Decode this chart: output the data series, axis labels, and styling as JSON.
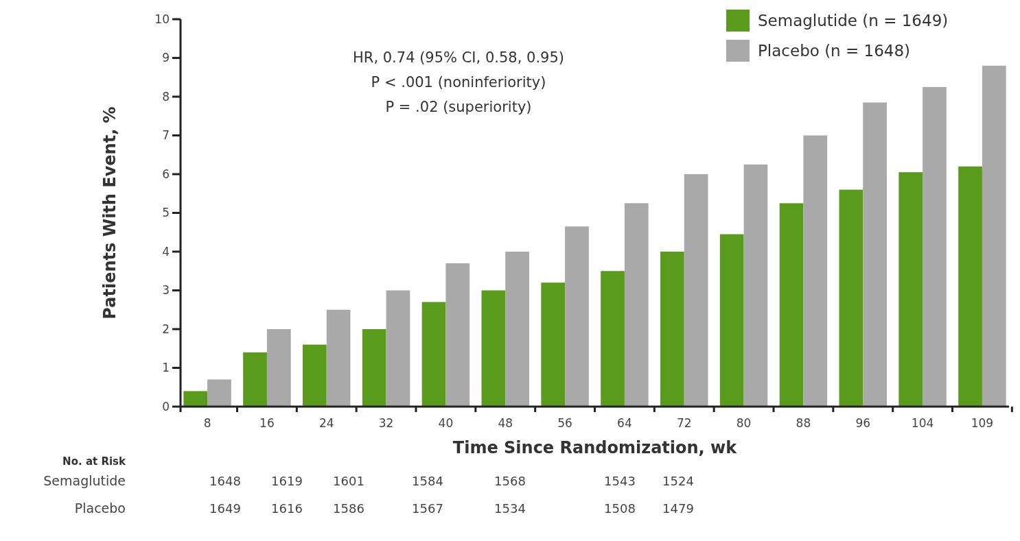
{
  "chart_data": {
    "type": "bar",
    "xlabel": "Time Since Randomization, wk",
    "ylabel": "Patients With Event, %",
    "categories": [
      "8",
      "16",
      "24",
      "32",
      "40",
      "48",
      "56",
      "64",
      "72",
      "80",
      "88",
      "96",
      "104",
      "109"
    ],
    "series": [
      {
        "name": "Semaglutide (n = 1649)",
        "color": "#5a9a1c",
        "values": [
          0.4,
          1.4,
          1.6,
          2.0,
          2.7,
          3.0,
          3.2,
          3.5,
          4.0,
          4.45,
          5.25,
          5.6,
          6.05,
          6.2
        ]
      },
      {
        "name": "Placebo (n = 1648)",
        "color": "#a9a9a9",
        "values": [
          0.7,
          2.0,
          2.5,
          3.0,
          3.7,
          4.0,
          4.65,
          5.25,
          6.0,
          6.25,
          7.0,
          7.85,
          8.25,
          8.8
        ]
      }
    ],
    "ylim": [
      0,
      10
    ],
    "yticks": [
      0,
      1,
      2,
      3,
      4,
      5,
      6,
      7,
      8,
      9,
      10
    ],
    "legend": "top right",
    "annotations": [
      "HR, 0.74 (95% CI, 0.58, 0.95)",
      "P < .001 (noninferiority)",
      "P = .02 (superiority)",
      "No. at Risk",
      "Semaglutide",
      "1648",
      "1619",
      "1601",
      "1584",
      "1568",
      "1543",
      "1524",
      "Placebo",
      "1649",
      "1616",
      "1586",
      "1567",
      "1534",
      "1508",
      "1479"
    ]
  }
}
